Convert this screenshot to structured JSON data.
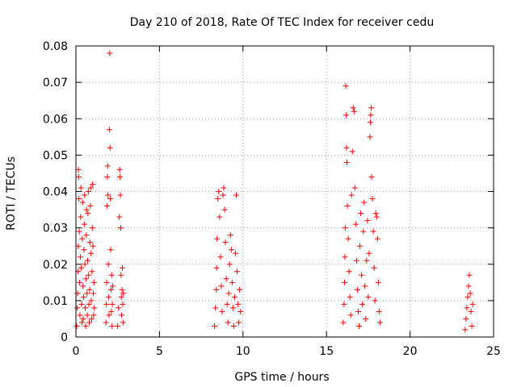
{
  "chart_data": {
    "type": "scatter",
    "title": "Day 210 of 2018, Rate Of TEC Index for receiver cedu",
    "xlabel": "GPS time / hours",
    "ylabel": "ROTI / TECUs",
    "xlim": [
      0,
      25
    ],
    "ylim": [
      0,
      0.08
    ],
    "xticks": [
      0,
      5,
      10,
      15,
      20,
      25
    ],
    "yticks": [
      0,
      0.01,
      0.02,
      0.03,
      0.04,
      0.05,
      0.06,
      0.07,
      0.08
    ],
    "xtick_labels": [
      "0",
      "5",
      "10",
      "15",
      "20",
      "25"
    ],
    "ytick_labels": [
      "0",
      "0.01",
      "0.02",
      "0.03",
      "0.04",
      "0.05",
      "0.06",
      "0.07",
      "0.08"
    ],
    "grid": true,
    "marker": "+",
    "series": [
      {
        "name": "ROTI",
        "color": "#ff0000",
        "points": [
          [
            0.05,
            0.003
          ],
          [
            0.08,
            0.008
          ],
          [
            0.1,
            0.012
          ],
          [
            0.12,
            0.018
          ],
          [
            0.14,
            0.025
          ],
          [
            0.15,
            0.046
          ],
          [
            0.16,
            0.044
          ],
          [
            0.18,
            0.038
          ],
          [
            0.2,
            0.029
          ],
          [
            0.22,
            0.015
          ],
          [
            0.24,
            0.006
          ],
          [
            0.26,
            0.022
          ],
          [
            0.28,
            0.033
          ],
          [
            0.3,
            0.041
          ],
          [
            0.32,
            0.019
          ],
          [
            0.34,
            0.009
          ],
          [
            0.36,
            0.004
          ],
          [
            0.38,
            0.027
          ],
          [
            0.4,
            0.037
          ],
          [
            0.42,
            0.014
          ],
          [
            0.44,
            0.005
          ],
          [
            0.46,
            0.011
          ],
          [
            0.48,
            0.024
          ],
          [
            0.5,
            0.031
          ],
          [
            0.52,
            0.039
          ],
          [
            0.54,
            0.02
          ],
          [
            0.56,
            0.008
          ],
          [
            0.58,
            0.003
          ],
          [
            0.6,
            0.016
          ],
          [
            0.62,
            0.028
          ],
          [
            0.64,
            0.035
          ],
          [
            0.66,
            0.012
          ],
          [
            0.68,
            0.006
          ],
          [
            0.7,
            0.021
          ],
          [
            0.72,
            0.034
          ],
          [
            0.74,
            0.04
          ],
          [
            0.76,
            0.017
          ],
          [
            0.78,
            0.009
          ],
          [
            0.8,
            0.004
          ],
          [
            0.82,
            0.013
          ],
          [
            0.84,
            0.026
          ],
          [
            0.86,
            0.036
          ],
          [
            0.88,
            0.041
          ],
          [
            0.9,
            0.023
          ],
          [
            0.92,
            0.01
          ],
          [
            0.94,
            0.005
          ],
          [
            0.96,
            0.018
          ],
          [
            0.98,
            0.03
          ],
          [
            1.0,
            0.042
          ],
          [
            1.02,
            0.025
          ],
          [
            1.04,
            0.012
          ],
          [
            1.06,
            0.006
          ],
          [
            1.08,
            0.015
          ],
          [
            1.1,
            0.008
          ],
          [
            1.8,
            0.004
          ],
          [
            1.82,
            0.009
          ],
          [
            1.84,
            0.015
          ],
          [
            1.86,
            0.036
          ],
          [
            1.88,
            0.044
          ],
          [
            1.9,
            0.047
          ],
          [
            1.92,
            0.039
          ],
          [
            1.94,
            0.02
          ],
          [
            1.96,
            0.011
          ],
          [
            1.98,
            0.006
          ],
          [
            2.0,
            0.057
          ],
          [
            2.02,
            0.078
          ],
          [
            2.04,
            0.052
          ],
          [
            2.06,
            0.038
          ],
          [
            2.08,
            0.024
          ],
          [
            2.1,
            0.013
          ],
          [
            2.12,
            0.007
          ],
          [
            2.14,
            0.017
          ],
          [
            2.16,
            0.003
          ],
          [
            2.18,
            0.009
          ],
          [
            2.2,
            0.014
          ],
          [
            2.5,
            0.003
          ],
          [
            2.55,
            0.008
          ],
          [
            2.6,
            0.033
          ],
          [
            2.62,
            0.046
          ],
          [
            2.64,
            0.044
          ],
          [
            2.66,
            0.039
          ],
          [
            2.68,
            0.03
          ],
          [
            2.7,
            0.017
          ],
          [
            2.72,
            0.011
          ],
          [
            2.74,
            0.006
          ],
          [
            2.76,
            0.013
          ],
          [
            2.78,
            0.019
          ],
          [
            2.8,
            0.009
          ],
          [
            2.82,
            0.004
          ],
          [
            2.84,
            0.012
          ],
          [
            8.3,
            0.003
          ],
          [
            8.35,
            0.008
          ],
          [
            8.4,
            0.013
          ],
          [
            8.42,
            0.019
          ],
          [
            8.45,
            0.027
          ],
          [
            8.5,
            0.038
          ],
          [
            8.55,
            0.04
          ],
          [
            8.6,
            0.033
          ],
          [
            8.65,
            0.022
          ],
          [
            8.7,
            0.014
          ],
          [
            8.75,
            0.007
          ],
          [
            8.8,
            0.039
          ],
          [
            8.85,
            0.041
          ],
          [
            8.9,
            0.035
          ],
          [
            8.95,
            0.026
          ],
          [
            9.0,
            0.016
          ],
          [
            9.05,
            0.009
          ],
          [
            9.1,
            0.004
          ],
          [
            9.15,
            0.012
          ],
          [
            9.2,
            0.02
          ],
          [
            9.25,
            0.028
          ],
          [
            9.3,
            0.024
          ],
          [
            9.35,
            0.015
          ],
          [
            9.4,
            0.008
          ],
          [
            9.45,
            0.003
          ],
          [
            9.5,
            0.011
          ],
          [
            9.55,
            0.023
          ],
          [
            9.6,
            0.039
          ],
          [
            9.65,
            0.018
          ],
          [
            9.7,
            0.009
          ],
          [
            9.75,
            0.004
          ],
          [
            9.8,
            0.013
          ],
          [
            9.85,
            0.007
          ],
          [
            16.0,
            0.004
          ],
          [
            16.05,
            0.009
          ],
          [
            16.08,
            0.015
          ],
          [
            16.1,
            0.022
          ],
          [
            16.12,
            0.03
          ],
          [
            16.15,
            0.069
          ],
          [
            16.18,
            0.061
          ],
          [
            16.2,
            0.052
          ],
          [
            16.22,
            0.048
          ],
          [
            16.25,
            0.036
          ],
          [
            16.3,
            0.027
          ],
          [
            16.35,
            0.018
          ],
          [
            16.4,
            0.011
          ],
          [
            16.45,
            0.006
          ],
          [
            16.5,
            0.039
          ],
          [
            16.55,
            0.051
          ],
          [
            16.6,
            0.063
          ],
          [
            16.65,
            0.062
          ],
          [
            16.7,
            0.041
          ],
          [
            16.75,
            0.031
          ],
          [
            16.8,
            0.021
          ],
          [
            16.85,
            0.013
          ],
          [
            16.9,
            0.007
          ],
          [
            16.95,
            0.003
          ],
          [
            17.0,
            0.025
          ],
          [
            17.05,
            0.034
          ],
          [
            17.1,
            0.017
          ],
          [
            17.15,
            0.009
          ],
          [
            17.2,
            0.029
          ],
          [
            17.25,
            0.037
          ],
          [
            17.3,
            0.014
          ],
          [
            17.35,
            0.005
          ],
          [
            17.4,
            0.021
          ],
          [
            17.45,
            0.032
          ],
          [
            17.5,
            0.011
          ],
          [
            17.55,
            0.023
          ],
          [
            17.6,
            0.055
          ],
          [
            17.62,
            0.059
          ],
          [
            17.65,
            0.061
          ],
          [
            17.68,
            0.063
          ],
          [
            17.7,
            0.044
          ],
          [
            17.75,
            0.038
          ],
          [
            17.8,
            0.029
          ],
          [
            17.85,
            0.019
          ],
          [
            17.9,
            0.01
          ],
          [
            17.95,
            0.034
          ],
          [
            18.0,
            0.033
          ],
          [
            18.05,
            0.027
          ],
          [
            18.1,
            0.015
          ],
          [
            18.15,
            0.007
          ],
          [
            18.2,
            0.004
          ],
          [
            23.3,
            0.002
          ],
          [
            23.35,
            0.005
          ],
          [
            23.4,
            0.008
          ],
          [
            23.45,
            0.011
          ],
          [
            23.5,
            0.014
          ],
          [
            23.55,
            0.017
          ],
          [
            23.6,
            0.012
          ],
          [
            23.65,
            0.007
          ],
          [
            23.7,
            0.003
          ],
          [
            23.75,
            0.009
          ]
        ]
      }
    ]
  }
}
